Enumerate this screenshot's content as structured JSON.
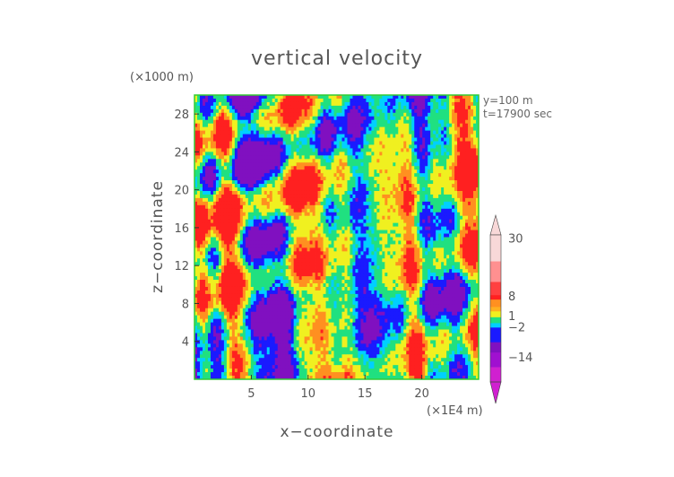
{
  "chart_data": {
    "type": "heatmap",
    "title": "vertical velocity",
    "xlabel": "x−coordinate",
    "ylabel": "z−coordinate",
    "x_unit": "(×1E4 m)",
    "y_unit": "(×1000 m)",
    "annotations": [
      "y=100 m",
      "t=17900 sec"
    ],
    "x_ticks": [
      5,
      10,
      15,
      20
    ],
    "y_ticks": [
      4,
      8,
      12,
      16,
      20,
      24,
      28
    ],
    "xlim": [
      0,
      25
    ],
    "ylim": [
      0,
      30
    ],
    "colorbar": {
      "labels": [
        "30",
        "8",
        "1",
        "−2",
        "−14"
      ],
      "label_values": [
        30,
        8,
        1,
        -2,
        -14
      ],
      "colors": {
        "magenta": "#d020d0",
        "purple": "#8010c0",
        "blue": "#1a1aff",
        "cyan": "#00d0ff",
        "green": "#20e080",
        "yellow": "#f0f020",
        "orange": "#ff9020",
        "red": "#ff2020",
        "pink": "#ff9090",
        "light_pink": "#f8d8d8"
      }
    },
    "grid": false
  }
}
